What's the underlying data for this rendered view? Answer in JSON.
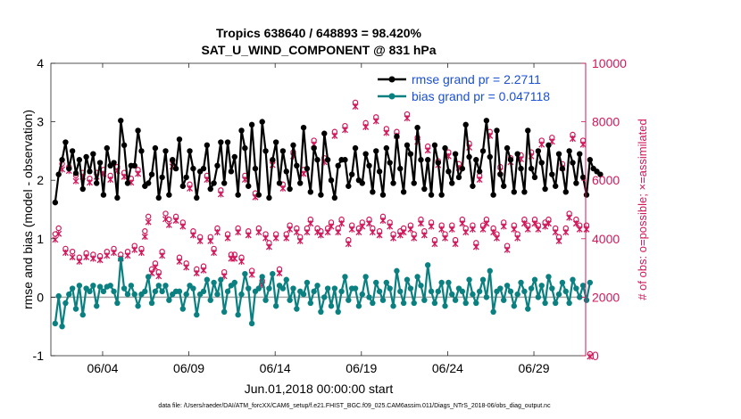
{
  "chart_data": {
    "type": "line",
    "title_line1": "Tropics 638640 / 648893 = 98.420%",
    "title_line2": "SAT_U_WIND_COMPONENT @ 831 hPa",
    "xlabel": "Jun.01,2018 00:00:00 start",
    "ylabel": "rmse and bias (model - observation)",
    "ylabel_right": "# of obs: o=possible; ×=assimilated",
    "ylim": [
      -1,
      4
    ],
    "ylim_right": [
      0,
      10000
    ],
    "xlim_days": [
      1.0,
      32.0
    ],
    "x_ticks": [
      {
        "day": 4,
        "label": "06/04"
      },
      {
        "day": 9,
        "label": "06/09"
      },
      {
        "day": 14,
        "label": "06/14"
      },
      {
        "day": 19,
        "label": "06/19"
      },
      {
        "day": 24,
        "label": "06/24"
      },
      {
        "day": 29,
        "label": "06/29"
      }
    ],
    "y_ticks": [
      "-1",
      "0",
      "1",
      "2",
      "3",
      "4"
    ],
    "y_ticks_right": [
      "0",
      "2000",
      "4000",
      "6000",
      "8000",
      "10000"
    ],
    "grid": false,
    "legend_position": "top-right",
    "series": [
      {
        "name": "rmse grand pr = 2.2711",
        "color": "#000000",
        "values": [
          1.62,
          2.1,
          2.35,
          2.65,
          2.2,
          2.5,
          2.12,
          2.35,
          1.85,
          2.4,
          2.15,
          2.45,
          1.95,
          2.3,
          1.75,
          2.55,
          2.25,
          2.3,
          1.7,
          3.02,
          2.6,
          1.95,
          2.25,
          2.25,
          2.85,
          2.5,
          1.9,
          1.95,
          2.1,
          2.55,
          1.7,
          2.05,
          2.5,
          1.75,
          2.35,
          2.2,
          2.7,
          1.9,
          2.05,
          2.5,
          2.2,
          1.7,
          2.15,
          2.2,
          2.6,
          1.85,
          1.95,
          2.25,
          2.65,
          1.95,
          2.65,
          2.15,
          2.4,
          1.75,
          2.85,
          2.55,
          1.9,
          2.95,
          2.2,
          1.75,
          3.0,
          2.5,
          1.7,
          2.35,
          2.65,
          1.95,
          2.5,
          2.15,
          1.85,
          2.6,
          2.25,
          1.95,
          2.9,
          2.2,
          1.8,
          2.55,
          2.35,
          1.75,
          2.8,
          2.35,
          2.0,
          1.7,
          2.25,
          2.35,
          2.35,
          1.9,
          2.1,
          2.55,
          2.0,
          1.95,
          2.45,
          2.25,
          1.8,
          2.5,
          2.15,
          1.75,
          2.55,
          2.3,
          1.95,
          2.75,
          2.2,
          1.8,
          2.6,
          2.45,
          1.95,
          2.9,
          2.35,
          1.85,
          2.35,
          1.75,
          2.6,
          2.3,
          1.75,
          2.55,
          2.15,
          1.95,
          2.45,
          2.05,
          2.2,
          2.95,
          2.4,
          1.9,
          2.35,
          2.15,
          2.5,
          3.02,
          2.4,
          1.75,
          2.85,
          2.1,
          1.9,
          2.55,
          2.35,
          1.8,
          2.45,
          2.2,
          1.8,
          2.85,
          2.2,
          2.05,
          2.5,
          2.3,
          1.85,
          2.6,
          2.1,
          1.9,
          2.45,
          2.2,
          1.8,
          2.5,
          2.3,
          1.95,
          2.45,
          2.05,
          1.75,
          2.35,
          2.2,
          2.15,
          2.1
        ]
      },
      {
        "name": "bias grand pr = 0.047118",
        "color": "#0a8080",
        "values": [
          -0.45,
          0.02,
          -0.5,
          -0.1,
          0.05,
          0.15,
          -0.2,
          0.2,
          -0.3,
          0.15,
          0.1,
          0.2,
          -0.15,
          0.18,
          0.1,
          0.18,
          0.2,
          0.1,
          -0.1,
          0.65,
          0.15,
          0.05,
          0.2,
          0.05,
          -0.15,
          0.05,
          0.1,
          0.35,
          -0.1,
          0.1,
          0.2,
          0.1,
          0.2,
          -0.05,
          0.05,
          0.1,
          0.1,
          -0.2,
          0.05,
          0.2,
          0.15,
          -0.3,
          0.05,
          0.1,
          0.3,
          -0.05,
          0.25,
          0.05,
          0.3,
          -0.25,
          0.1,
          0.2,
          0.25,
          -0.3,
          0.05,
          0.4,
          0.15,
          -0.45,
          0.1,
          0.15,
          0.35,
          -0.05,
          0.15,
          0.4,
          -0.15,
          0.2,
          0.15,
          0.3,
          -0.05,
          0.15,
          -0.2,
          0.1,
          0.05,
          0.25,
          -0.1,
          0.1,
          0.2,
          -0.25,
          0.0,
          0.15,
          -0.15,
          0.15,
          -0.25,
          0.1,
          0.35,
          -0.05,
          0.15,
          0.15,
          -0.15,
          0.05,
          0.35,
          0.0,
          -0.1,
          0.25,
          0.1,
          -0.05,
          0.25,
          0.15,
          -0.15,
          0.45,
          0.1,
          -0.1,
          0.3,
          0.15,
          -0.1,
          0.35,
          0.2,
          -0.05,
          0.55,
          0.1,
          -0.1,
          0.1,
          0.25,
          -0.15,
          0.25,
          0.05,
          -0.05,
          0.15,
          0.1,
          -0.1,
          0.3,
          0.05,
          -0.1,
          0.1,
          0.3,
          0.0,
          0.45,
          -0.25,
          0.1,
          0.15,
          -0.05,
          0.2,
          0.1,
          -0.15,
          0.05,
          0.25,
          0.1,
          -0.2,
          0.15,
          0.3,
          0.0,
          0.2,
          -0.1,
          0.35,
          0.15,
          -0.1,
          0.05,
          0.25,
          0.1,
          -0.1,
          0.3,
          0.15,
          0.0,
          0.2,
          -0.05,
          0.25
        ]
      },
      {
        "name": "possible",
        "color": "#d0185a",
        "values": [
          4100,
          4300,
          6500,
          3600,
          6400,
          3500,
          6100,
          3300,
          6200,
          3450,
          6000,
          3400,
          6200,
          3350,
          6300,
          3500,
          6100,
          3600,
          6400,
          3400,
          6200,
          3500,
          6000,
          3700,
          6300,
          3600,
          4200,
          4700,
          2900,
          3100,
          2800,
          3500,
          4800,
          4600,
          6600,
          4700,
          3300,
          4500,
          3100,
          5800,
          4200,
          2900,
          4000,
          3000,
          6100,
          4000,
          3600,
          4300,
          5600,
          2800,
          4100,
          3400,
          3400,
          4300,
          3300,
          6100,
          4200,
          2850,
          5500,
          4300,
          2500,
          4100,
          3800,
          6600,
          4100,
          2900,
          5800,
          4100,
          4400,
          6900,
          4300,
          4000,
          6300,
          4300,
          4600,
          7300,
          4300,
          4200,
          6700,
          4300,
          4500,
          7600,
          4300,
          4600,
          7800,
          3900,
          4400,
          8600,
          4300,
          4500,
          7900,
          4600,
          4300,
          8100,
          4200,
          4700,
          7700,
          4500,
          4100,
          7600,
          4200,
          4300,
          8200,
          4400,
          4100,
          7400,
          4600,
          4200,
          7100,
          4500,
          3900,
          6600,
          4400,
          4100,
          6900,
          4400,
          3900,
          6500,
          4600,
          4300,
          7200,
          4400,
          3800,
          6100,
          4400,
          4600,
          7600,
          4300,
          4100,
          6400,
          4500,
          3700,
          6700,
          4400,
          4100,
          6800,
          4600,
          4400,
          6900,
          4600,
          4400,
          7300,
          4500,
          4600,
          7400,
          4300,
          4000,
          6500,
          4300,
          4800,
          7500,
          4600,
          4400,
          7300,
          4400,
          0
        ]
      },
      {
        "name": "assimilated",
        "color": "#d0185a",
        "values": [
          4000,
          4200,
          6400,
          3550,
          6350,
          3400,
          6000,
          3250,
          6150,
          3400,
          5950,
          3350,
          6150,
          3300,
          6250,
          3450,
          6050,
          3550,
          6350,
          3350,
          6150,
          3450,
          5950,
          3650,
          6250,
          3550,
          4100,
          4600,
          2850,
          3050,
          2750,
          3450,
          4700,
          4500,
          6500,
          4650,
          3250,
          4450,
          3050,
          5750,
          4150,
          2850,
          3950,
          2950,
          6050,
          3950,
          3550,
          4250,
          5550,
          2750,
          4050,
          3350,
          3350,
          4250,
          3250,
          6050,
          4150,
          2800,
          5450,
          4250,
          2450,
          4050,
          3750,
          6550,
          4050,
          2850,
          5750,
          4050,
          4350,
          6850,
          4250,
          3950,
          6250,
          4250,
          4550,
          7250,
          4250,
          4150,
          6650,
          4250,
          4450,
          7550,
          4250,
          4550,
          7750,
          3850,
          4350,
          8550,
          4250,
          4450,
          7850,
          4550,
          4250,
          8050,
          4150,
          4650,
          7650,
          4450,
          4050,
          7550,
          4150,
          4250,
          8150,
          4350,
          4050,
          7350,
          4550,
          4150,
          7050,
          4450,
          3850,
          6550,
          4350,
          4050,
          6850,
          4350,
          3850,
          6450,
          4550,
          4250,
          7150,
          4350,
          3750,
          6050,
          4350,
          4550,
          7550,
          4250,
          4050,
          6350,
          4450,
          3650,
          6650,
          4350,
          4050,
          6750,
          4550,
          4350,
          6850,
          4550,
          4350,
          7250,
          4450,
          4550,
          7350,
          4250,
          3950,
          6450,
          4250,
          4750,
          7450,
          4550,
          4350,
          7250,
          4350,
          0
        ]
      }
    ]
  },
  "footer_text": "data file: /Users/raeder/DAI/ATM_forcXX/CAM6_setup/f.e21.FHIST_BGC.f09_025.CAM6assim.011/Diags_NTrS_2018-06/obs_diag_output.nc"
}
